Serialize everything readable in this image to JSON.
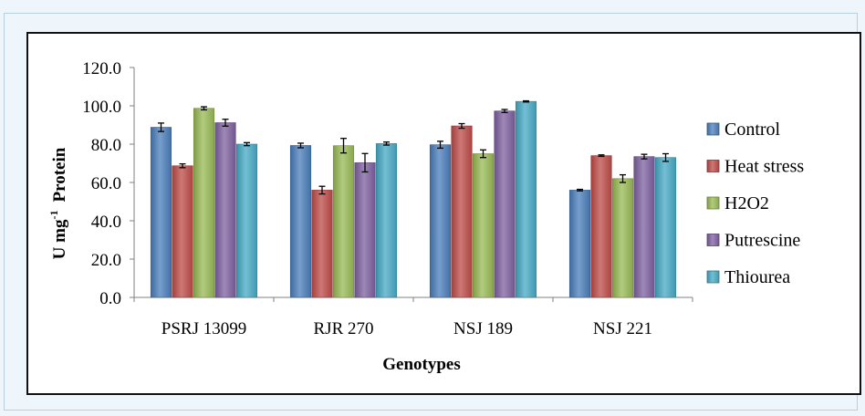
{
  "chart_data": {
    "type": "bar",
    "title": "",
    "xlabel": "Genotypes",
    "ylabel": "U mg",
    "ylabel_superscript": "-1",
    "ylabel_suffix": "Protein",
    "ylim": [
      0,
      120
    ],
    "yticks": [
      "0.0",
      "20.0",
      "40.0",
      "60.0",
      "80.0",
      "100.0",
      "120.0"
    ],
    "ytick_values": [
      0,
      20,
      40,
      60,
      80,
      100,
      120
    ],
    "grid": false,
    "legend_position": "right",
    "categories": [
      "PSRJ 13099",
      "RJR 270",
      "NSJ 189",
      "NSJ 221"
    ],
    "series": [
      {
        "name": "Control",
        "color": "#4a7ebb",
        "values": [
          88.8,
          79.3,
          79.7,
          56.0
        ],
        "errors": [
          2.2,
          1.2,
          1.8,
          0.4
        ]
      },
      {
        "name": "Heat stress",
        "color": "#be4b48",
        "values": [
          68.7,
          56.0,
          89.5,
          74.0
        ],
        "errors": [
          1.0,
          2.0,
          1.2,
          0.4
        ]
      },
      {
        "name": "H2O2",
        "color": "#98b954",
        "values": [
          98.7,
          79.2,
          75.0,
          62.0
        ],
        "errors": [
          0.8,
          3.8,
          2.0,
          2.0
        ]
      },
      {
        "name": "Putrescine",
        "color": "#7d60a0",
        "values": [
          91.2,
          70.3,
          97.3,
          73.5
        ],
        "errors": [
          1.8,
          4.8,
          0.8,
          1.2
        ]
      },
      {
        "name": "Thiourea",
        "color": "#46aac5",
        "values": [
          80.0,
          80.3,
          102.3,
          73.0
        ],
        "errors": [
          0.8,
          0.8,
          0.3,
          2.0
        ]
      }
    ]
  }
}
